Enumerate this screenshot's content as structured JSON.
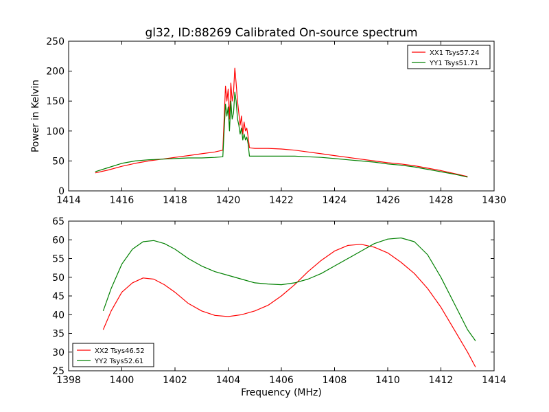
{
  "title": "gl32, ID:88269 Calibrated On-source spectrum",
  "colors": {
    "xx": "#ff0000",
    "yy": "#008000"
  },
  "chart_data": [
    {
      "type": "line",
      "ylabel": "Power in Kelvin",
      "xlabel": "",
      "xlim": [
        1414,
        1430
      ],
      "ylim": [
        0,
        250
      ],
      "xticks": [
        1414,
        1416,
        1418,
        1420,
        1422,
        1424,
        1426,
        1428,
        1430
      ],
      "yticks": [
        0,
        50,
        100,
        150,
        200,
        250
      ],
      "legend_position": "top-right",
      "series": [
        {
          "name": "XX1 Tsys57.24",
          "color": "#ff0000",
          "x": [
            1415.0,
            1415.5,
            1416.0,
            1416.5,
            1417.0,
            1417.5,
            1418.0,
            1418.5,
            1419.0,
            1419.5,
            1419.8,
            1419.9,
            1419.95,
            1420.0,
            1420.05,
            1420.1,
            1420.15,
            1420.2,
            1420.25,
            1420.3,
            1420.35,
            1420.4,
            1420.45,
            1420.5,
            1420.55,
            1420.6,
            1420.65,
            1420.7,
            1420.75,
            1420.8,
            1421.0,
            1421.5,
            1422.0,
            1422.5,
            1423.0,
            1423.5,
            1424.0,
            1424.5,
            1425.0,
            1425.5,
            1426.0,
            1426.5,
            1427.0,
            1427.5,
            1428.0,
            1428.5,
            1429.0
          ],
          "y": [
            30,
            35,
            41,
            46,
            50,
            53,
            56,
            59,
            62,
            65,
            68,
            175,
            150,
            170,
            120,
            180,
            150,
            165,
            205,
            180,
            150,
            130,
            110,
            125,
            95,
            115,
            100,
            105,
            90,
            72,
            71,
            71,
            70,
            68,
            65,
            62,
            59,
            56,
            53,
            50,
            47,
            45,
            42,
            38,
            34,
            29,
            24
          ]
        },
        {
          "name": "YY1 Tsys51.71",
          "color": "#008000",
          "x": [
            1415.0,
            1415.5,
            1416.0,
            1416.5,
            1417.0,
            1417.5,
            1418.0,
            1418.5,
            1419.0,
            1419.5,
            1419.8,
            1419.9,
            1419.95,
            1420.0,
            1420.05,
            1420.1,
            1420.15,
            1420.2,
            1420.25,
            1420.3,
            1420.35,
            1420.4,
            1420.45,
            1420.5,
            1420.55,
            1420.6,
            1420.65,
            1420.7,
            1420.75,
            1420.8,
            1421.0,
            1421.5,
            1422.0,
            1422.5,
            1423.0,
            1423.5,
            1424.0,
            1424.5,
            1425.0,
            1425.5,
            1426.0,
            1426.5,
            1427.0,
            1427.5,
            1428.0,
            1428.5,
            1429.0
          ],
          "y": [
            32,
            39,
            46,
            50,
            52,
            53,
            54,
            55,
            55,
            56,
            57,
            145,
            125,
            140,
            100,
            150,
            120,
            130,
            165,
            150,
            120,
            110,
            95,
            105,
            85,
            95,
            85,
            90,
            78,
            58,
            58,
            58,
            58,
            58,
            57,
            56,
            54,
            52,
            50,
            48,
            45,
            43,
            40,
            36,
            32,
            28,
            23
          ]
        }
      ]
    },
    {
      "type": "line",
      "xlabel": "Frequency (MHz)",
      "ylabel": "",
      "xlim": [
        1398,
        1414
      ],
      "ylim": [
        25,
        65
      ],
      "xticks": [
        1398,
        1400,
        1402,
        1404,
        1406,
        1408,
        1410,
        1412,
        1414
      ],
      "yticks": [
        25,
        30,
        35,
        40,
        45,
        50,
        55,
        60,
        65
      ],
      "legend_position": "bottom-left",
      "series": [
        {
          "name": "XX2 Tsys46.52",
          "color": "#ff0000",
          "x": [
            1399.3,
            1399.6,
            1400.0,
            1400.4,
            1400.8,
            1401.2,
            1401.6,
            1402.0,
            1402.5,
            1403.0,
            1403.5,
            1404.0,
            1404.5,
            1405.0,
            1405.5,
            1406.0,
            1406.5,
            1407.0,
            1407.5,
            1408.0,
            1408.5,
            1409.0,
            1409.5,
            1410.0,
            1410.5,
            1411.0,
            1411.5,
            1412.0,
            1412.5,
            1413.0,
            1413.3
          ],
          "y": [
            36,
            41,
            46,
            48.5,
            49.8,
            49.5,
            48,
            46,
            43,
            41,
            39.8,
            39.5,
            40,
            41,
            42.5,
            45,
            48,
            51.5,
            54.5,
            57,
            58.5,
            58.8,
            58,
            56.5,
            54,
            51,
            47,
            42,
            36,
            30,
            26
          ]
        },
        {
          "name": "YY2 Tsys52.61",
          "color": "#008000",
          "x": [
            1399.3,
            1399.6,
            1400.0,
            1400.4,
            1400.8,
            1401.2,
            1401.6,
            1402.0,
            1402.5,
            1403.0,
            1403.5,
            1404.0,
            1404.5,
            1405.0,
            1405.5,
            1406.0,
            1406.5,
            1407.0,
            1407.5,
            1408.0,
            1408.5,
            1409.0,
            1409.5,
            1410.0,
            1410.5,
            1411.0,
            1411.5,
            1412.0,
            1412.5,
            1413.0,
            1413.3
          ],
          "y": [
            41,
            47,
            53.5,
            57.5,
            59.5,
            59.8,
            59,
            57.5,
            55,
            53,
            51.5,
            50.5,
            49.5,
            48.5,
            48.2,
            48,
            48.5,
            49.5,
            51,
            53,
            55,
            57,
            59,
            60.2,
            60.5,
            59.5,
            56,
            50,
            43,
            36,
            33
          ]
        }
      ]
    }
  ]
}
